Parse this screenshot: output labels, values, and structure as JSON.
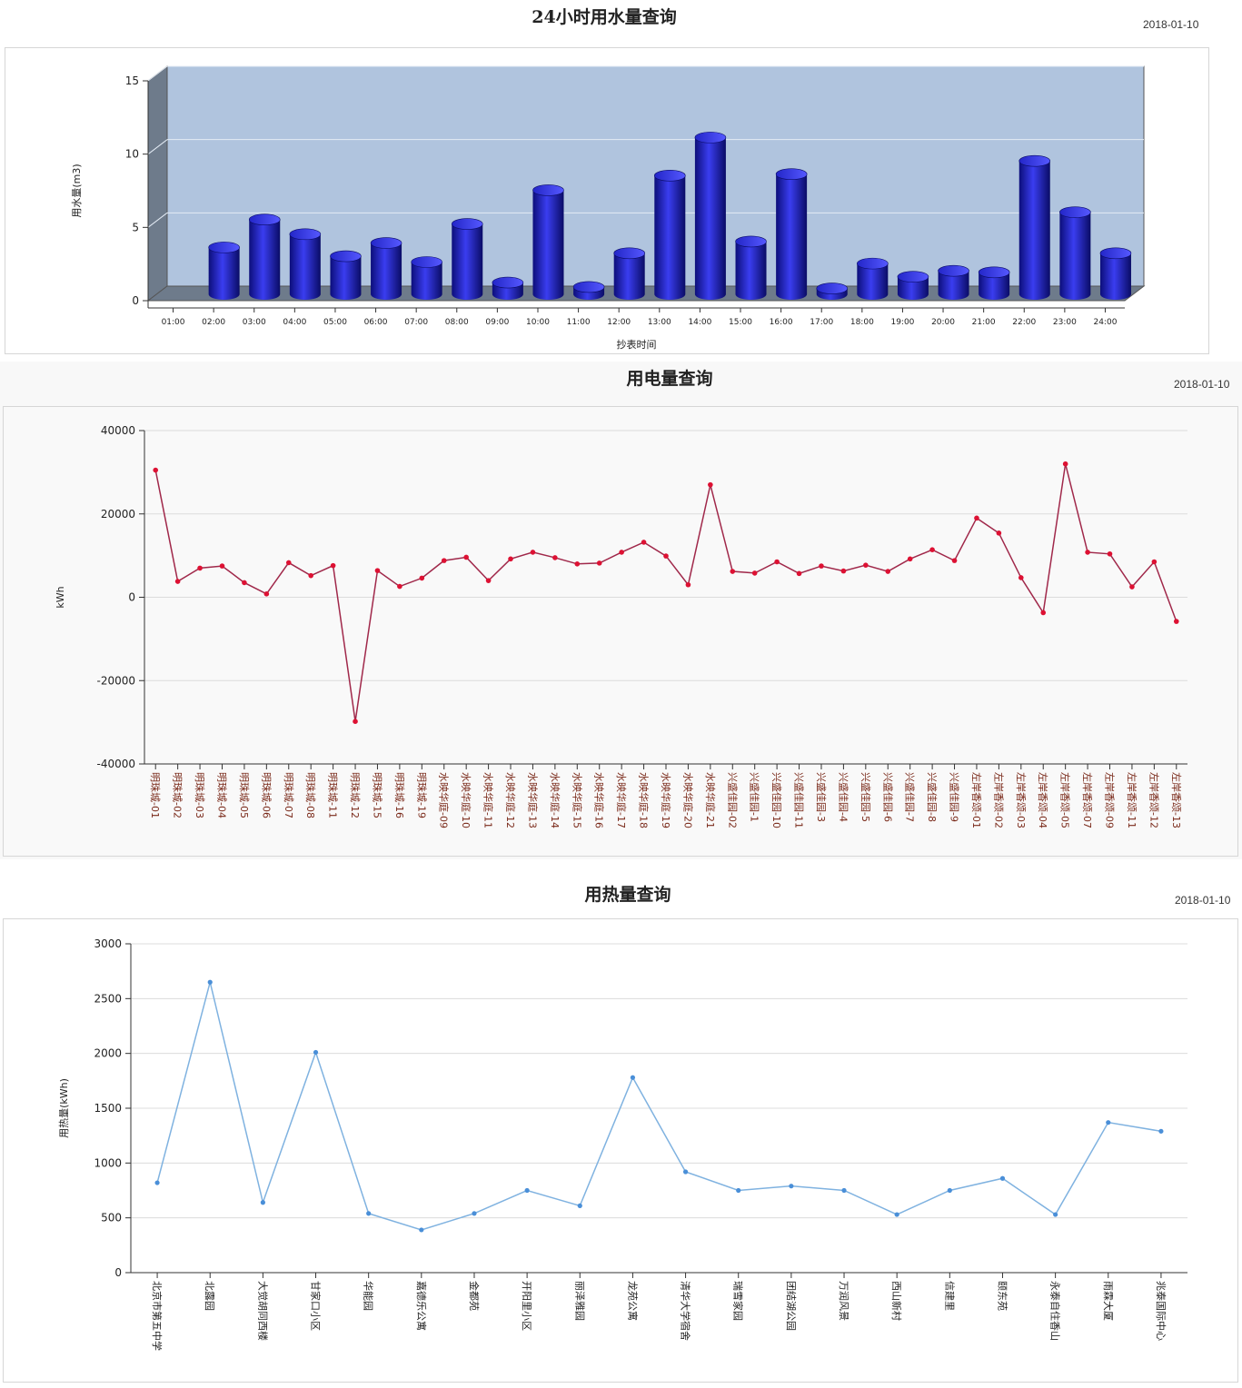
{
  "chart_data": [
    {
      "type": "bar",
      "title": "24小时用水量查询",
      "date": "2018-01-10",
      "xlabel": "抄表时间",
      "ylabel": "用水量(m3)",
      "ylim": [
        0,
        15
      ],
      "yticks": [
        0,
        5,
        10,
        15
      ],
      "categories": [
        "01:00",
        "02:00",
        "03:00",
        "04:00",
        "05:00",
        "06:00",
        "07:00",
        "08:00",
        "09:00",
        "10:00",
        "11:00",
        "12:00",
        "13:00",
        "14:00",
        "15:00",
        "16:00",
        "17:00",
        "18:00",
        "19:00",
        "20:00",
        "21:00",
        "22:00",
        "23:00",
        "24:00"
      ],
      "values": [
        null,
        3.2,
        5.1,
        4.1,
        2.6,
        3.5,
        2.2,
        4.8,
        0.8,
        7.1,
        0.5,
        2.8,
        8.1,
        10.7,
        3.6,
        8.2,
        0.4,
        2.1,
        1.2,
        1.6,
        1.5,
        9.1,
        5.6,
        2.8
      ],
      "grid": true,
      "colors": {
        "bar": "#1c1fb5",
        "plot_bg": "#b0c4de",
        "wall": "#6e7b8b"
      }
    },
    {
      "type": "line",
      "title": "用电量查询",
      "date": "2018-01-10",
      "xlabel": "",
      "ylabel": "kWh",
      "ylim": [
        -40000,
        40000
      ],
      "yticks": [
        -40000,
        -20000,
        0,
        20000,
        40000
      ],
      "categories": [
        "明珠城-01",
        "明珠城-02",
        "明珠城-03",
        "明珠城-04",
        "明珠城-05",
        "明珠城-06",
        "明珠城-07",
        "明珠城-08",
        "明珠城-11",
        "明珠城-12",
        "明珠城-15",
        "明珠城-16",
        "明珠城-19",
        "水映华庭-09",
        "水映华庭-10",
        "水映华庭-11",
        "水映华庭-12",
        "水映华庭-13",
        "水映华庭-14",
        "水映华庭-15",
        "水映华庭-16",
        "水映华庭-17",
        "水映华庭-18",
        "水映华庭-19",
        "水映华庭-20",
        "水映华庭-21",
        "兴盛佳园-02",
        "兴盛佳园-1",
        "兴盛佳园-10",
        "兴盛佳园-11",
        "兴盛佳园-3",
        "兴盛佳园-4",
        "兴盛佳园-5",
        "兴盛佳园-6",
        "兴盛佳园-7",
        "兴盛佳园-8",
        "兴盛佳园-9",
        "左岸香颂-01",
        "左岸香颂-02",
        "左岸香颂-03",
        "左岸香颂-04",
        "左岸香颂-05",
        "左岸香颂-07",
        "左岸香颂-09",
        "左岸香颂-11",
        "左岸香颂-12",
        "左岸香颂-13"
      ],
      "values": [
        30500,
        3800,
        7000,
        7500,
        3500,
        800,
        8300,
        5200,
        7600,
        -29800,
        6400,
        2600,
        4600,
        8800,
        9600,
        4000,
        9200,
        10800,
        9500,
        8000,
        8200,
        10800,
        13200,
        9900,
        3000,
        27000,
        6200,
        5800,
        8500,
        5700,
        7500,
        6300,
        7700,
        6200,
        9200,
        11400,
        8800,
        19000,
        15400,
        4700,
        -3700,
        32000,
        10800,
        10400,
        2500,
        8500,
        -5800
      ],
      "grid": true,
      "colors": {
        "line": "#a0284a",
        "point": "#dd1133",
        "tick_label": "#7a2a1a"
      }
    },
    {
      "type": "line",
      "title": "用热量查询",
      "date": "2018-01-10",
      "xlabel": "",
      "ylabel": "用热量(kWh)",
      "ylim": [
        0,
        3000
      ],
      "yticks": [
        0,
        500,
        1000,
        1500,
        2000,
        2500,
        3000
      ],
      "categories": [
        "北京市第五中学",
        "北露园",
        "大觉胡同西楼",
        "甘家口小区",
        "华能园",
        "嘉德乐公寓",
        "金都苑",
        "开阳里小区",
        "丽泽雅园",
        "龙苑公寓",
        "清华大学宿舍",
        "瑞雪家园",
        "团结湖公园",
        "万润风景",
        "西山新村",
        "信建里",
        "颐东苑",
        "永泰自住香山",
        "雨霖大厦",
        "兆泰国际中心"
      ],
      "values": [
        820,
        2650,
        640,
        2010,
        540,
        390,
        540,
        750,
        610,
        1780,
        920,
        750,
        790,
        750,
        530,
        750,
        860,
        530,
        1370,
        1290
      ],
      "grid": true,
      "colors": {
        "line": "#7fb2e0",
        "point": "#4a8fd8"
      }
    }
  ]
}
